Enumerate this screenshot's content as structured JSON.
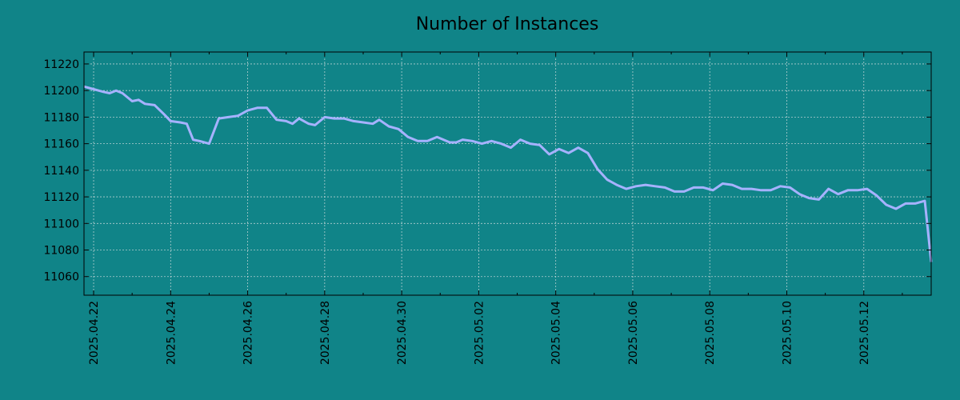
{
  "colors": {
    "background": "#108488",
    "line": "#a6b2ff",
    "axes": "#000000",
    "grid": "#e8e8e8"
  },
  "chart_data": {
    "type": "line",
    "title": "Number of Instances",
    "xlabel": "",
    "ylabel": "",
    "grid": true,
    "legend": "none",
    "xlim": [
      "2025-04-21T18:00",
      "2025-05-13T18:00"
    ],
    "ylim": [
      11046,
      11229
    ],
    "x_ticks": [
      "2025.04.22",
      "2025.04.24",
      "2025.04.26",
      "2025.04.28",
      "2025.04.30",
      "2025.05.02",
      "2025.05.04",
      "2025.05.06",
      "2025.05.08",
      "2025.05.10",
      "2025.05.12"
    ],
    "y_ticks": [
      11060,
      11080,
      11100,
      11120,
      11140,
      11160,
      11180,
      11200,
      11220
    ],
    "series": [
      {
        "color": "#a6b2ff",
        "points": [
          [
            "2025-04-21T18:00",
            11203
          ],
          [
            "2025-04-22T00:00",
            11201
          ],
          [
            "2025-04-22T06:00",
            11199
          ],
          [
            "2025-04-22T10:00",
            11198
          ],
          [
            "2025-04-22T14:00",
            11200
          ],
          [
            "2025-04-22T18:00",
            11198
          ],
          [
            "2025-04-23T00:00",
            11192
          ],
          [
            "2025-04-23T04:00",
            11193
          ],
          [
            "2025-04-23T08:00",
            11190
          ],
          [
            "2025-04-23T14:00",
            11189
          ],
          [
            "2025-04-23T20:00",
            11182
          ],
          [
            "2025-04-24T00:00",
            11177
          ],
          [
            "2025-04-24T06:00",
            11176
          ],
          [
            "2025-04-24T10:00",
            11175
          ],
          [
            "2025-04-24T14:00",
            11163
          ],
          [
            "2025-04-24T18:00",
            11162
          ],
          [
            "2025-04-25T00:00",
            11160
          ],
          [
            "2025-04-25T06:00",
            11179
          ],
          [
            "2025-04-25T12:00",
            11180
          ],
          [
            "2025-04-25T18:00",
            11181
          ],
          [
            "2025-04-26T00:00",
            11185
          ],
          [
            "2025-04-26T06:00",
            11187
          ],
          [
            "2025-04-26T12:00",
            11187
          ],
          [
            "2025-04-26T18:00",
            11178
          ],
          [
            "2025-04-27T00:00",
            11177
          ],
          [
            "2025-04-27T04:00",
            11175
          ],
          [
            "2025-04-27T08:00",
            11179
          ],
          [
            "2025-04-27T14:00",
            11175
          ],
          [
            "2025-04-27T18:00",
            11174
          ],
          [
            "2025-04-28T00:00",
            11180
          ],
          [
            "2025-04-28T06:00",
            11179
          ],
          [
            "2025-04-28T12:00",
            11179
          ],
          [
            "2025-04-28T18:00",
            11177
          ],
          [
            "2025-04-29T00:00",
            11176
          ],
          [
            "2025-04-29T06:00",
            11175
          ],
          [
            "2025-04-29T10:00",
            11178
          ],
          [
            "2025-04-29T16:00",
            11173
          ],
          [
            "2025-04-29T22:00",
            11171
          ],
          [
            "2025-04-30T04:00",
            11165
          ],
          [
            "2025-04-30T10:00",
            11162
          ],
          [
            "2025-04-30T16:00",
            11162
          ],
          [
            "2025-04-30T22:00",
            11165
          ],
          [
            "2025-05-01T06:00",
            11161
          ],
          [
            "2025-05-01T10:00",
            11161
          ],
          [
            "2025-05-01T14:00",
            11163
          ],
          [
            "2025-05-01T20:00",
            11162
          ],
          [
            "2025-05-02T02:00",
            11160
          ],
          [
            "2025-05-02T08:00",
            11162
          ],
          [
            "2025-05-02T14:00",
            11160
          ],
          [
            "2025-05-02T20:00",
            11157
          ],
          [
            "2025-05-03T02:00",
            11163
          ],
          [
            "2025-05-03T08:00",
            11160
          ],
          [
            "2025-05-03T14:00",
            11159
          ],
          [
            "2025-05-03T20:00",
            11152
          ],
          [
            "2025-05-04T02:00",
            11156
          ],
          [
            "2025-05-04T08:00",
            11153
          ],
          [
            "2025-05-04T14:00",
            11157
          ],
          [
            "2025-05-04T20:00",
            11153
          ],
          [
            "2025-05-05T02:00",
            11141
          ],
          [
            "2025-05-05T08:00",
            11133
          ],
          [
            "2025-05-05T14:00",
            11129
          ],
          [
            "2025-05-05T20:00",
            11126
          ],
          [
            "2025-05-06T02:00",
            11128
          ],
          [
            "2025-05-06T08:00",
            11129
          ],
          [
            "2025-05-06T14:00",
            11128
          ],
          [
            "2025-05-06T20:00",
            11127
          ],
          [
            "2025-05-07T02:00",
            11124
          ],
          [
            "2025-05-07T08:00",
            11124
          ],
          [
            "2025-05-07T14:00",
            11127
          ],
          [
            "2025-05-07T20:00",
            11127
          ],
          [
            "2025-05-08T02:00",
            11125
          ],
          [
            "2025-05-08T08:00",
            11130
          ],
          [
            "2025-05-08T14:00",
            11129
          ],
          [
            "2025-05-08T20:00",
            11126
          ],
          [
            "2025-05-09T02:00",
            11126
          ],
          [
            "2025-05-09T08:00",
            11125
          ],
          [
            "2025-05-09T14:00",
            11125
          ],
          [
            "2025-05-09T20:00",
            11128
          ],
          [
            "2025-05-10T02:00",
            11127
          ],
          [
            "2025-05-10T08:00",
            11122
          ],
          [
            "2025-05-10T14:00",
            11119
          ],
          [
            "2025-05-10T20:00",
            11118
          ],
          [
            "2025-05-11T02:00",
            11126
          ],
          [
            "2025-05-11T08:00",
            11122
          ],
          [
            "2025-05-11T14:00",
            11125
          ],
          [
            "2025-05-11T20:00",
            11125
          ],
          [
            "2025-05-12T02:00",
            11126
          ],
          [
            "2025-05-12T08:00",
            11121
          ],
          [
            "2025-05-12T14:00",
            11114
          ],
          [
            "2025-05-12T20:00",
            11111
          ],
          [
            "2025-05-13T02:00",
            11115
          ],
          [
            "2025-05-13T08:00",
            11115
          ],
          [
            "2025-05-13T14:00",
            11117
          ],
          [
            "2025-05-13T18:00",
            11071
          ]
        ]
      }
    ]
  }
}
